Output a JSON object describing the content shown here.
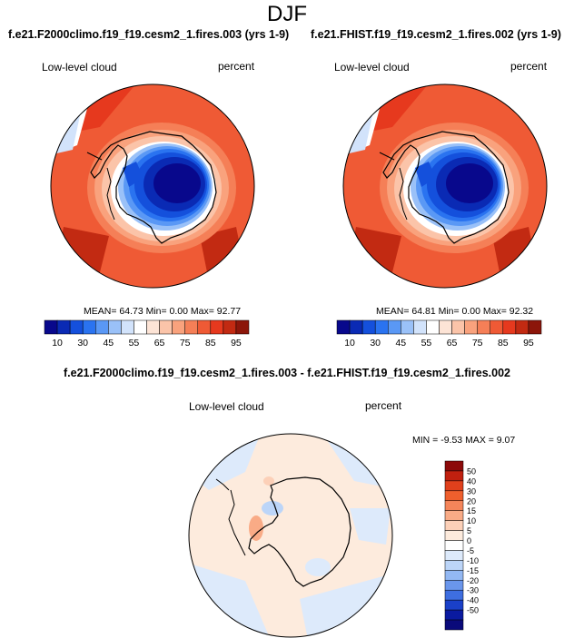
{
  "season": "DJF",
  "panels": [
    {
      "run": "f.e21.F2000climo.f19_f19.cesm2_1.fires.003 (yrs 1-9)",
      "variable": "Low-level cloud",
      "units": "percent",
      "stats": "MEAN=  64.73  Min=   0.00  Max=  92.77"
    },
    {
      "run": "f.e21.FHIST.f19_f19.cesm2_1.fires.002 (yrs 1-9)",
      "variable": "Low-level cloud",
      "units": "percent",
      "stats": "MEAN=  64.81  Min=   0.00  Max=  92.32"
    }
  ],
  "diff_panel": {
    "title": "f.e21.F2000climo.f19_f19.cesm2_1.fires.003 - f.e21.FHIST.f19_f19.cesm2_1.fires.002",
    "variable": "Low-level cloud",
    "units": "percent",
    "stats": "MIN =  -9.53 MAX =   9.07"
  },
  "chart_data": [
    {
      "type": "heatmap",
      "projection": "south-polar-stereographic",
      "colorbar": {
        "orientation": "horizontal",
        "colors": [
          "#08088c",
          "#0a2ab4",
          "#1450dc",
          "#2a73f0",
          "#5a98f5",
          "#9ac1f8",
          "#d2e3fb",
          "#ffffff",
          "#fde4d6",
          "#fbc4a9",
          "#f9a27d",
          "#f57f57",
          "#ef5a35",
          "#e6391e",
          "#c22a12",
          "#8c160a"
        ],
        "tick_labels": [
          "10",
          "30",
          "45",
          "55",
          "65",
          "75",
          "85",
          "95"
        ],
        "tick_values": [
          10,
          30,
          45,
          55,
          65,
          75,
          85,
          95
        ]
      },
      "stats": {
        "mean": 64.73,
        "min": 0.0,
        "max": 92.77
      }
    },
    {
      "type": "heatmap",
      "projection": "south-polar-stereographic",
      "colorbar": {
        "orientation": "horizontal",
        "colors": [
          "#08088c",
          "#0a2ab4",
          "#1450dc",
          "#2a73f0",
          "#5a98f5",
          "#9ac1f8",
          "#d2e3fb",
          "#ffffff",
          "#fde4d6",
          "#fbc4a9",
          "#f9a27d",
          "#f57f57",
          "#ef5a35",
          "#e6391e",
          "#c22a12",
          "#8c160a"
        ],
        "tick_labels": [
          "10",
          "30",
          "45",
          "55",
          "65",
          "75",
          "85",
          "95"
        ],
        "tick_values": [
          10,
          30,
          45,
          55,
          65,
          75,
          85,
          95
        ]
      },
      "stats": {
        "mean": 64.81,
        "min": 0.0,
        "max": 92.32
      }
    },
    {
      "type": "heatmap",
      "projection": "south-polar-stereographic",
      "colorbar": {
        "orientation": "vertical",
        "colors": [
          "#8c0a0a",
          "#c0200f",
          "#e0401c",
          "#ef5f2d",
          "#f5855a",
          "#f9ab86",
          "#fcd0b8",
          "#fdebdd",
          "#ffffff",
          "#ddeafb",
          "#bcd5f8",
          "#93b8f3",
          "#6a96ec",
          "#3e6ee0",
          "#1a40c8",
          "#0a1aa0",
          "#0a0a7a"
        ],
        "tick_labels": [
          "50",
          "40",
          "30",
          "20",
          "15",
          "10",
          "5",
          "0",
          "-5",
          "-10",
          "-15",
          "-20",
          "-30",
          "-40",
          "-50"
        ],
        "tick_values": [
          50,
          40,
          30,
          20,
          15,
          10,
          5,
          0,
          -5,
          -10,
          -15,
          -20,
          -30,
          -40,
          -50
        ]
      },
      "stats": {
        "min": -9.53,
        "max": 9.07
      }
    }
  ]
}
